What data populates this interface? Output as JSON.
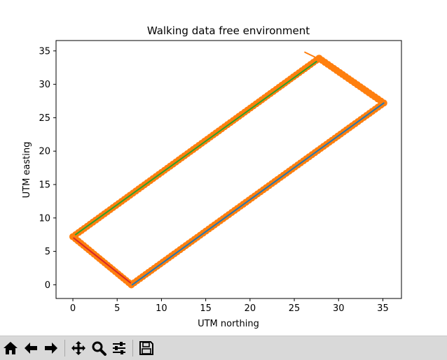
{
  "chart_data": {
    "type": "scatter",
    "title": "Walking data free environment",
    "xlabel": "UTM northing",
    "ylabel": "UTM easting",
    "xlim": [
      -1.9,
      37.1
    ],
    "ylim": [
      -2.05,
      36.55
    ],
    "xticks": [
      "0",
      "5",
      "10",
      "15",
      "20",
      "25",
      "30",
      "35"
    ],
    "yticks": [
      "0",
      "5",
      "10",
      "15",
      "20",
      "25",
      "30",
      "35"
    ],
    "grid": false,
    "series": [
      {
        "marker": "circle",
        "color": "#ff7f0e",
        "segments": [
          {
            "from": [
              0.0,
              7.2
            ],
            "to": [
              27.8,
              33.9
            ]
          },
          {
            "from": [
              27.8,
              33.9
            ],
            "to": [
              35.1,
              27.2
            ]
          },
          {
            "from": [
              35.1,
              27.2
            ],
            "to": [
              6.6,
              0.0
            ]
          },
          {
            "from": [
              6.6,
              0.0
            ],
            "to": [
              0.0,
              7.2
            ]
          }
        ]
      },
      {
        "marker": "line",
        "color": "#2ca02c",
        "segments": [
          {
            "from": [
              0.3,
              7.5
            ],
            "to": [
              27.5,
              33.4
            ]
          }
        ]
      },
      {
        "marker": "line",
        "color": "#1f77b4",
        "segments": [
          {
            "from": [
              6.7,
              0.0
            ],
            "to": [
              35.1,
              27.2
            ]
          }
        ]
      },
      {
        "marker": "line",
        "color": "#d62728",
        "segments": [
          {
            "from": [
              0.1,
              7.0
            ],
            "to": [
              6.5,
              0.3
            ]
          }
        ]
      },
      {
        "marker": "line",
        "color": "#ff7f0e",
        "segments": [
          {
            "from": [
              26.2,
              34.8
            ],
            "to": [
              29.8,
              32.5
            ]
          }
        ]
      }
    ]
  },
  "toolbar": {
    "buttons": [
      {
        "icon": "home-icon"
      },
      {
        "icon": "back-arrow-icon"
      },
      {
        "icon": "forward-arrow-icon"
      },
      {
        "icon": "pan-icon"
      },
      {
        "icon": "zoom-icon"
      },
      {
        "icon": "configure-subplots-icon"
      },
      {
        "icon": "save-icon"
      }
    ]
  }
}
